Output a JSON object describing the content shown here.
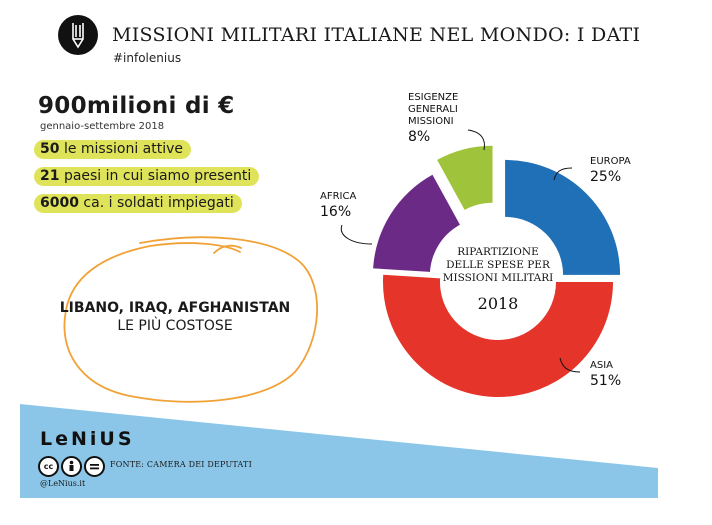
{
  "header": {
    "title": "MISSIONI MILITARI ITALIANE NEL MONDO: I DATI",
    "hashtag": "#infolenius"
  },
  "summary": {
    "amount": "900milioni di €",
    "period": "gennaio-settembre 2018",
    "facts": [
      {
        "num": "50",
        "text": "le missioni attive"
      },
      {
        "num": "21",
        "text": "paesi in cui siamo presenti"
      },
      {
        "num": "6000",
        "text": "ca. i soldati impiegati"
      }
    ],
    "costly_line1": "LIBANO, IRAQ, AFGHANISTAN",
    "costly_line2": "LE PIÙ COSTOSE"
  },
  "footer": {
    "brand": "LeNiUS",
    "source": "FONTE: CAMERA DEI DEPUTATI",
    "handle": "@LeNius.it",
    "cc_icons": [
      "cc-icon",
      "by-icon",
      "nd-icon"
    ]
  },
  "colors": {
    "europa": "#1f70b6",
    "asia": "#e5342a",
    "africa": "#6b2a86",
    "esigenze": "#9fc33a",
    "highlight": "#dfe35a",
    "band": "#8bc6e8",
    "scribble": "#f0a236"
  },
  "chart_data": {
    "type": "pie",
    "variant": "exploded-donut",
    "title_lines": [
      "RIPARTIZIONE",
      "DELLE SPESE PER",
      "MISSIONI MILITARI"
    ],
    "year": "2018",
    "slices": [
      {
        "label_lines": [
          "EUROPA"
        ],
        "value": 25,
        "value_label": "25%"
      },
      {
        "label_lines": [
          "ASIA"
        ],
        "value": 51,
        "value_label": "51%"
      },
      {
        "label_lines": [
          "AFRICA"
        ],
        "value": 16,
        "value_label": "16%"
      },
      {
        "label_lines": [
          "ESIGENZE",
          "GENERALI",
          "MISSIONI"
        ],
        "value": 8,
        "value_label": "8%"
      }
    ]
  }
}
